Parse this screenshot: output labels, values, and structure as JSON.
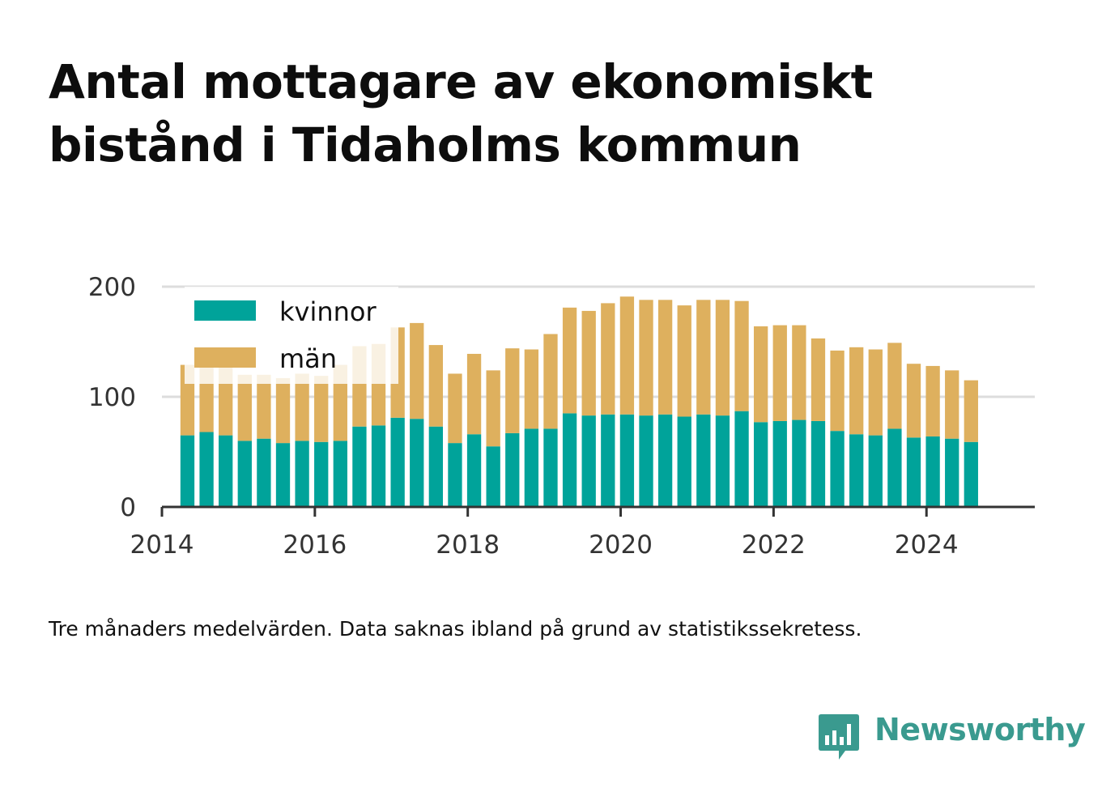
{
  "title": "Antal mottagare av ekonomiskt bistånd i Tidaholms kommun",
  "caption": "Tre månaders medelvärden. Data saknas ibland på grund av statistikssekretess.",
  "brand": {
    "name": "Newsworthy",
    "color": "#3a9a8f"
  },
  "colors": {
    "kvinnor": "#00a39a",
    "man": "#deb05e",
    "grid": "#dddddd",
    "axis": "#333333"
  },
  "chart_data": {
    "type": "bar",
    "stacked": true,
    "x_ticks": [
      "2014",
      "2016",
      "2018",
      "2020",
      "2022",
      "2024"
    ],
    "y_ticks": [
      "0",
      "100",
      "200"
    ],
    "ylim": [
      0,
      200
    ],
    "xlim": [
      "2014-01",
      "2025-06"
    ],
    "grid": true,
    "legend": "top-left",
    "x": [
      "2014-05",
      "2014-08",
      "2014-11",
      "2015-02",
      "2015-05",
      "2015-08",
      "2015-11",
      "2016-02",
      "2016-05",
      "2016-08",
      "2016-11",
      "2017-02",
      "2017-05",
      "2017-08",
      "2017-11",
      "2018-02",
      "2018-05",
      "2018-08",
      "2018-11",
      "2019-02",
      "2019-05",
      "2019-08",
      "2019-11",
      "2020-02",
      "2020-05",
      "2020-08",
      "2020-11",
      "2021-02",
      "2021-05",
      "2021-08",
      "2021-11",
      "2022-02",
      "2022-05",
      "2022-08",
      "2022-11",
      "2023-02",
      "2023-05",
      "2023-08",
      "2023-11",
      "2024-02",
      "2024-05",
      "2024-08"
    ],
    "series": [
      {
        "name": "kvinnor",
        "values": [
          65,
          68,
          65,
          60,
          62,
          58,
          60,
          59,
          60,
          73,
          74,
          81,
          80,
          73,
          58,
          66,
          55,
          67,
          71,
          71,
          85,
          83,
          84,
          84,
          83,
          84,
          82,
          84,
          83,
          87,
          77,
          78,
          79,
          78,
          69,
          66,
          65,
          71,
          63,
          64,
          62,
          59
        ]
      },
      {
        "name": "män",
        "values": [
          64,
          64,
          67,
          60,
          58,
          59,
          61,
          60,
          69,
          73,
          74,
          82,
          87,
          74,
          63,
          73,
          69,
          77,
          72,
          86,
          96,
          95,
          101,
          107,
          105,
          104,
          101,
          104,
          105,
          100,
          87,
          87,
          86,
          75,
          73,
          79,
          78,
          78,
          67,
          64,
          62,
          56
        ]
      }
    ]
  }
}
